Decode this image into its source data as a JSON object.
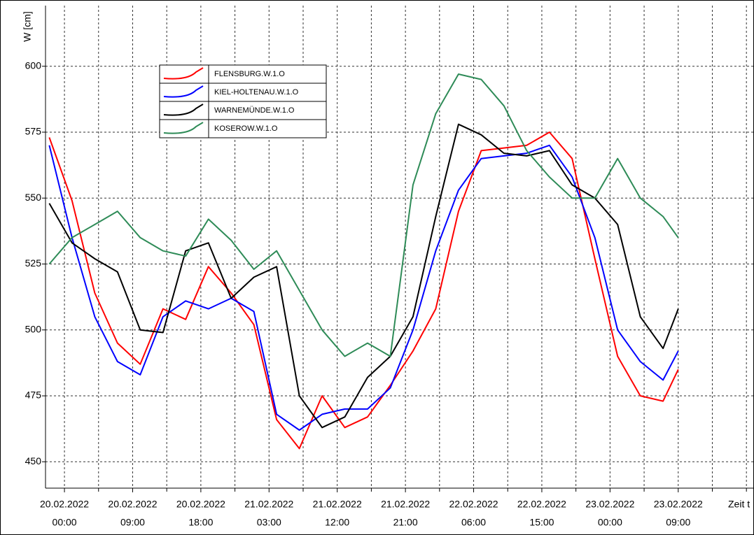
{
  "chart_data": {
    "type": "line",
    "y_label": "W [cm]",
    "x_label": "Zeit t",
    "x": [
      "2022-02-19T22:00",
      "2022-02-20T01:00",
      "2022-02-20T04:00",
      "2022-02-20T07:00",
      "2022-02-20T10:00",
      "2022-02-20T13:00",
      "2022-02-20T16:00",
      "2022-02-20T19:00",
      "2022-02-20T22:00",
      "2022-02-21T01:00",
      "2022-02-21T04:00",
      "2022-02-21T07:00",
      "2022-02-21T10:00",
      "2022-02-21T13:00",
      "2022-02-21T16:00",
      "2022-02-21T19:00",
      "2022-02-21T22:00",
      "2022-02-22T01:00",
      "2022-02-22T04:00",
      "2022-02-22T07:00",
      "2022-02-22T10:00",
      "2022-02-22T13:00",
      "2022-02-22T16:00",
      "2022-02-22T19:00",
      "2022-02-22T22:00",
      "2022-02-23T01:00",
      "2022-02-23T04:00",
      "2022-02-23T07:00",
      "2022-02-23T09:00"
    ],
    "series": [
      {
        "name": "FLENSBURG.W.1.O",
        "color": "#ff0000",
        "values": [
          573,
          549,
          514,
          495,
          487,
          508,
          504,
          524,
          514,
          502,
          466,
          455,
          475,
          463,
          467,
          479,
          492,
          508,
          545,
          568,
          569,
          570,
          575,
          565,
          527,
          490,
          475,
          473,
          485
        ]
      },
      {
        "name": "KIEL-HOLTENAU.W.1.O",
        "color": "#0000ff",
        "values": [
          570,
          535,
          505,
          488,
          483,
          505,
          511,
          508,
          512,
          507,
          468,
          462,
          468,
          470,
          470,
          478,
          500,
          530,
          553,
          565,
          566,
          567,
          570,
          558,
          535,
          500,
          488,
          481,
          492
        ]
      },
      {
        "name": "WARNEMÜNDE.W.1.O",
        "color": "#000000",
        "values": [
          548,
          533,
          527,
          522,
          500,
          499,
          530,
          533,
          512,
          520,
          524,
          475,
          463,
          467,
          482,
          490,
          505,
          543,
          578,
          574,
          567,
          566,
          568,
          555,
          550,
          540,
          505,
          493,
          508
        ]
      },
      {
        "name": "KOSEROW.W.1.O",
        "color": "#2e8b57",
        "values": [
          525,
          535,
          540,
          545,
          535,
          530,
          528,
          542,
          534,
          523,
          530,
          515,
          500,
          490,
          495,
          490,
          555,
          582,
          597,
          595,
          585,
          568,
          558,
          550,
          550,
          565,
          550,
          543,
          535
        ]
      }
    ],
    "xlim": [
      "2022-02-19T21:30",
      "2022-02-23T19:00"
    ],
    "xticks": [
      {
        "value": "2022-02-20T00:00",
        "label": [
          "20.02.2022",
          "00:00"
        ]
      },
      {
        "value": "2022-02-20T09:00",
        "label": [
          "20.02.2022",
          "09:00"
        ]
      },
      {
        "value": "2022-02-20T18:00",
        "label": [
          "20.02.2022",
          "18:00"
        ]
      },
      {
        "value": "2022-02-21T03:00",
        "label": [
          "21.02.2022",
          "03:00"
        ]
      },
      {
        "value": "2022-02-21T12:00",
        "label": [
          "21.02.2022",
          "12:00"
        ]
      },
      {
        "value": "2022-02-21T21:00",
        "label": [
          "21.02.2022",
          "21:00"
        ]
      },
      {
        "value": "2022-02-22T06:00",
        "label": [
          "22.02.2022",
          "06:00"
        ]
      },
      {
        "value": "2022-02-22T15:00",
        "label": [
          "22.02.2022",
          "15:00"
        ]
      },
      {
        "value": "2022-02-23T00:00",
        "label": [
          "23.02.2022",
          "00:00"
        ]
      },
      {
        "value": "2022-02-23T09:00",
        "label": [
          "23.02.2022",
          "09:00"
        ]
      }
    ],
    "xminorticks": [
      "2022-02-20T04:30",
      "2022-02-20T13:30",
      "2022-02-20T22:30",
      "2022-02-21T07:30",
      "2022-02-21T16:30",
      "2022-02-22T01:30",
      "2022-02-22T10:30",
      "2022-02-22T19:30",
      "2022-02-23T04:30",
      "2022-02-23T13:30",
      "2022-02-23T18:00"
    ],
    "ylim": [
      440,
      623
    ],
    "yticks": [
      450,
      475,
      500,
      525,
      550,
      575,
      600
    ],
    "grid": true
  }
}
